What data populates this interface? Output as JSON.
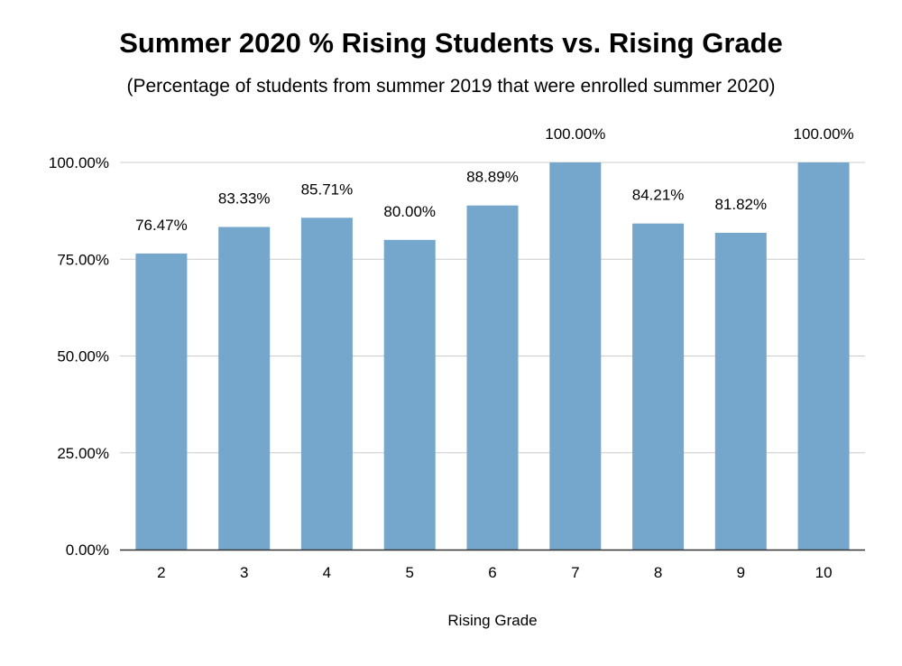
{
  "chart_data": {
    "type": "bar",
    "title": "Summer 2020 % Rising Students vs. Rising Grade",
    "subtitle": "(Percentage of students from summer 2019 that were enrolled summer 2020)",
    "xlabel": "Rising Grade",
    "ylabel": "",
    "categories": [
      "2",
      "3",
      "4",
      "5",
      "6",
      "7",
      "8",
      "9",
      "10"
    ],
    "values": [
      76.47,
      83.33,
      85.71,
      80.0,
      88.89,
      100.0,
      84.21,
      81.82,
      100.0
    ],
    "data_labels": [
      "76.47%",
      "83.33%",
      "85.71%",
      "80.00%",
      "88.89%",
      "100.00%",
      "84.21%",
      "81.82%",
      "100.00%"
    ],
    "ylim": [
      0,
      100
    ],
    "yticks": [
      0,
      25,
      50,
      75,
      100
    ],
    "ytick_labels": [
      "0.00%",
      "25.00%",
      "50.00%",
      "75.00%",
      "100.00%"
    ],
    "grid": true,
    "legend": "none",
    "colors": {
      "bar": "#74a7cb",
      "grid": "#cccccc",
      "axis": "#333333"
    }
  }
}
